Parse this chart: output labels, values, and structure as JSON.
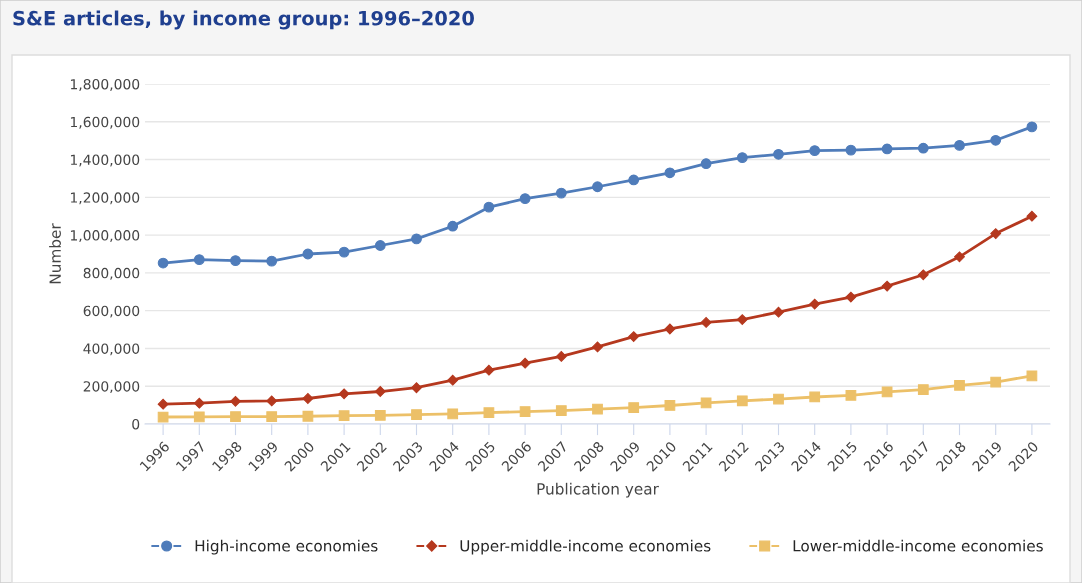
{
  "chart_data": {
    "type": "line",
    "title": "S&E articles, by income group: 1996–2020",
    "xlabel": "Publication year",
    "ylabel": "Number",
    "categories": [
      "1996",
      "1997",
      "1998",
      "1999",
      "2000",
      "2001",
      "2002",
      "2003",
      "2004",
      "2005",
      "2006",
      "2007",
      "2008",
      "2009",
      "2010",
      "2011",
      "2012",
      "2013",
      "2014",
      "2015",
      "2016",
      "2017",
      "2018",
      "2019",
      "2020"
    ],
    "series": [
      {
        "name": "High-income economies",
        "color": "#4f7cba",
        "marker": "circle",
        "values": [
          852000,
          870000,
          865000,
          862000,
          900000,
          910000,
          945000,
          980000,
          1047000,
          1148000,
          1193000,
          1222000,
          1256000,
          1292000,
          1330000,
          1378000,
          1410000,
          1428000,
          1447000,
          1450000,
          1456000,
          1460000,
          1475000,
          1502000,
          1573000
        ]
      },
      {
        "name": "Upper-middle-income economies",
        "color": "#b5381e",
        "marker": "diamond",
        "values": [
          105000,
          110000,
          120000,
          122000,
          135000,
          160000,
          172000,
          192000,
          232000,
          285000,
          322000,
          358000,
          408000,
          463000,
          503000,
          538000,
          553000,
          592000,
          635000,
          672000,
          730000,
          790000,
          885000,
          1008000,
          1100000
        ]
      },
      {
        "name": "Lower-middle-income economies",
        "color": "#ecc068",
        "marker": "square",
        "values": [
          37000,
          38000,
          39000,
          39000,
          41000,
          44000,
          46000,
          50000,
          54000,
          60000,
          66000,
          71000,
          79000,
          87000,
          98000,
          112000,
          123000,
          132000,
          143000,
          152000,
          170000,
          182000,
          205000,
          222000,
          255000
        ]
      }
    ],
    "ylim": [
      0,
      1800000
    ],
    "yticks": [
      {
        "value": 0,
        "label": "0"
      },
      {
        "value": 200000,
        "label": "200,000"
      },
      {
        "value": 400000,
        "label": "400,000"
      },
      {
        "value": 600000,
        "label": "600,000"
      },
      {
        "value": 800000,
        "label": "800,000"
      },
      {
        "value": 1000000,
        "label": "1,000,000"
      },
      {
        "value": 1200000,
        "label": "1,200,000"
      },
      {
        "value": 1400000,
        "label": "1,400,000"
      },
      {
        "value": 1600000,
        "label": "1,600,000"
      },
      {
        "value": 1800000,
        "label": "1,800,000"
      }
    ],
    "grid": "y",
    "legend": "bottom",
    "line_style": "solid"
  }
}
